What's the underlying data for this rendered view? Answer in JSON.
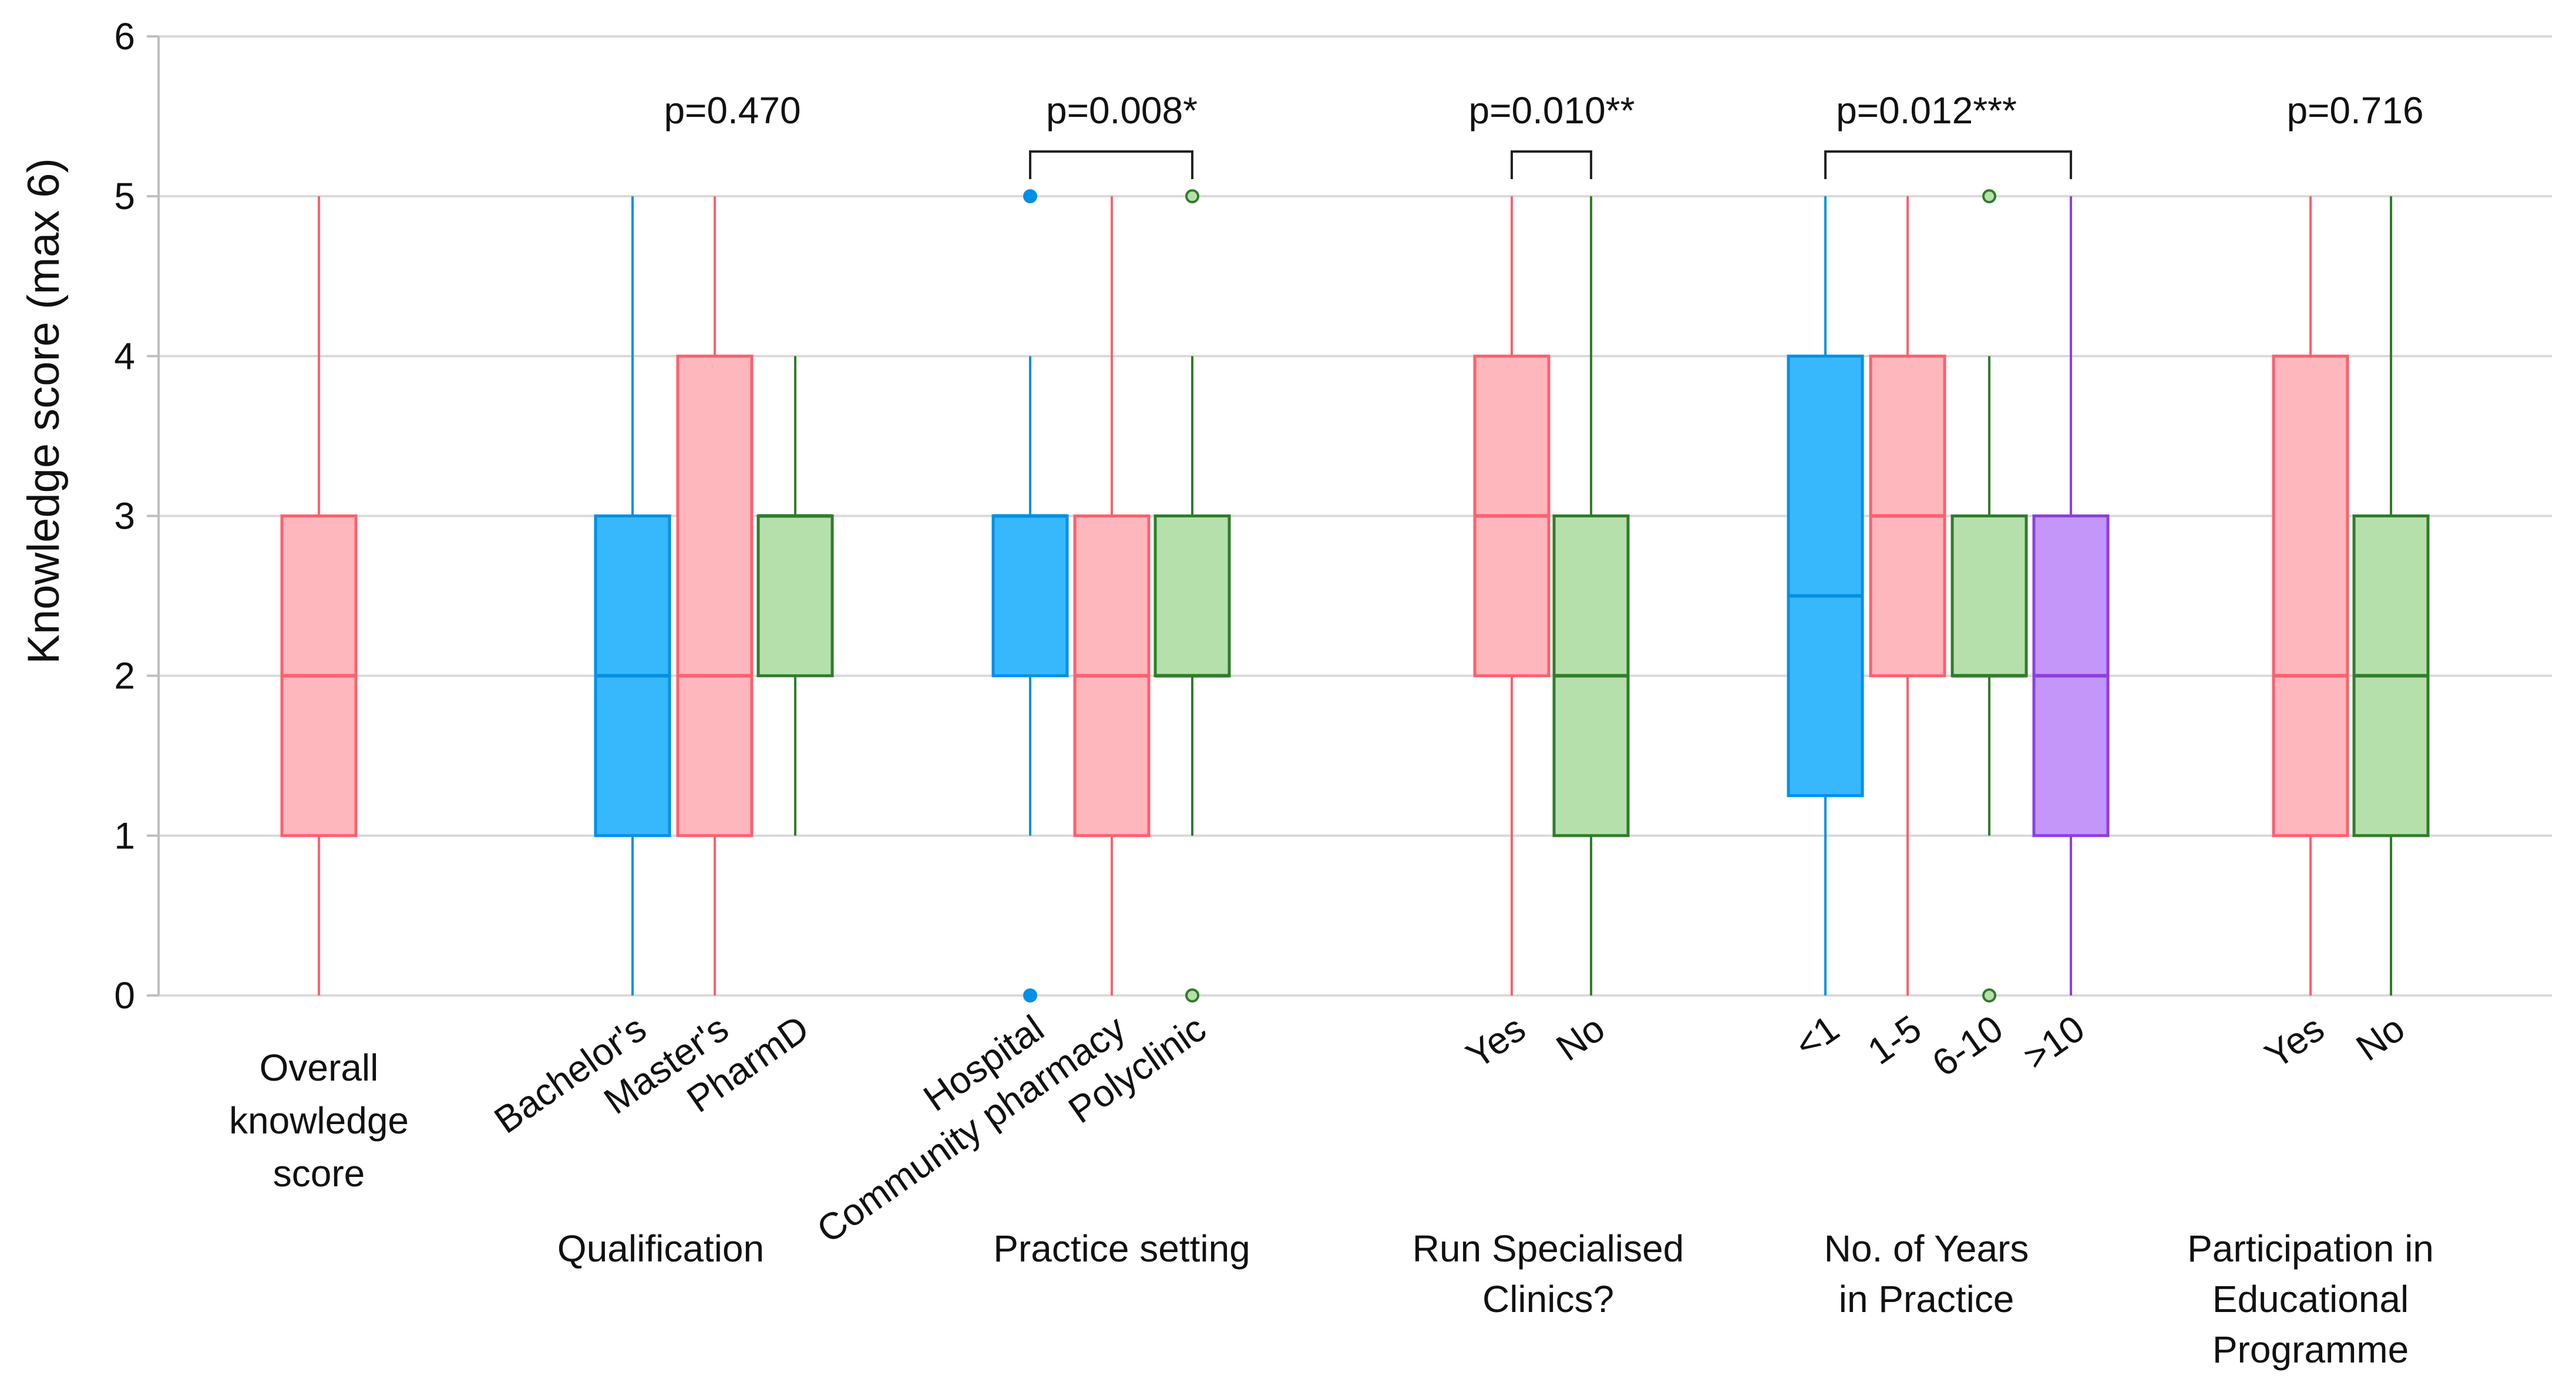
{
  "chart_data": {
    "type": "boxplot",
    "ylabel": "Knowledge score (max 6)",
    "ylim": [
      0,
      6
    ],
    "yticks": [
      0,
      1,
      2,
      3,
      4,
      5,
      6
    ],
    "grid": true,
    "colors": {
      "pink": "#FF5F6D",
      "pink_fill": "#FFB7BE",
      "blue": "#0090E6",
      "blue_fill": "#38B8FC",
      "green": "#2F7D2A",
      "green_fill": "#B6E0AB",
      "purple": "#8B3FE0",
      "purple_fill": "#C596F9"
    },
    "groups": [
      {
        "label": "",
        "title_lines": [],
        "p_value": "",
        "bracket": false,
        "boxes": [
          {
            "name": "overall",
            "label_lines": [
              "Overall",
              "knowledge",
              "score"
            ],
            "rotated": false,
            "color": "pink",
            "min": 0,
            "q1": 1,
            "median": 2,
            "q3": 3,
            "max": 5,
            "outliers": []
          }
        ]
      },
      {
        "label": "Qualification",
        "title_lines": [
          "Qualification"
        ],
        "p_value": "p=0.470",
        "bracket": false,
        "boxes": [
          {
            "name": "bachelors",
            "label": "Bachelor's",
            "color": "blue",
            "min": 0,
            "q1": 1,
            "median": 2,
            "q3": 3,
            "max": 5,
            "outliers": []
          },
          {
            "name": "masters",
            "label": "Master's",
            "color": "pink",
            "min": 0,
            "q1": 1,
            "median": 2,
            "q3": 4,
            "max": 5,
            "outliers": []
          },
          {
            "name": "pharmd",
            "label": "PharmD",
            "color": "green",
            "min": 1,
            "q1": 2,
            "median": 3,
            "q3": 3,
            "max": 4,
            "outliers": []
          }
        ]
      },
      {
        "label": "Practice setting",
        "title_lines": [
          "Practice setting"
        ],
        "p_value": "p=0.008*",
        "bracket": true,
        "bracket_from": 0,
        "bracket_to": 2,
        "boxes": [
          {
            "name": "hospital",
            "label": "Hospital",
            "color": "blue",
            "min": 1,
            "q1": 2,
            "median": 3,
            "q3": 3,
            "max": 4,
            "outliers": [
              0,
              5
            ]
          },
          {
            "name": "community-pharmacy",
            "label": "Community pharmacy",
            "color": "pink",
            "min": 0,
            "q1": 1,
            "median": 2,
            "q3": 3,
            "max": 5,
            "outliers": []
          },
          {
            "name": "polyclinic",
            "label": "Polyclinic",
            "color": "green",
            "min": 1,
            "q1": 2,
            "median": 2,
            "q3": 3,
            "max": 4,
            "outliers": [
              0,
              5
            ]
          }
        ]
      },
      {
        "label": "Run Specialised Clinics?",
        "title_lines": [
          "Run Specialised",
          "Clinics?"
        ],
        "p_value": "p=0.010**",
        "bracket": true,
        "bracket_from": 0,
        "bracket_to": 1,
        "boxes": [
          {
            "name": "clinics-yes",
            "label": "Yes",
            "color": "pink",
            "min": 0,
            "q1": 2,
            "median": 3,
            "q3": 4,
            "max": 5,
            "outliers": []
          },
          {
            "name": "clinics-no",
            "label": "No",
            "color": "green",
            "min": 0,
            "q1": 1,
            "median": 2,
            "q3": 3,
            "max": 5,
            "outliers": []
          }
        ]
      },
      {
        "label": "No. of Years in Practice",
        "title_lines": [
          "No. of Years",
          "in Practice"
        ],
        "p_value": "p=0.012***",
        "bracket": true,
        "bracket_from": 0,
        "bracket_to": 3,
        "boxes": [
          {
            "name": "years-lt1",
            "label": "<1",
            "color": "blue",
            "min": 0,
            "q1": 1.25,
            "median": 2.5,
            "q3": 4,
            "max": 5,
            "outliers": []
          },
          {
            "name": "years-1-5",
            "label": "1-5",
            "color": "pink",
            "min": 0,
            "q1": 2,
            "median": 3,
            "q3": 4,
            "max": 5,
            "outliers": []
          },
          {
            "name": "years-6-10",
            "label": "6-10",
            "color": "green",
            "min": 1,
            "q1": 2,
            "median": 2,
            "q3": 3,
            "max": 4,
            "outliers": [
              0,
              5
            ]
          },
          {
            "name": "years-gt10",
            "label": ">10",
            "color": "purple",
            "min": 0,
            "q1": 1,
            "median": 2,
            "q3": 3,
            "max": 5,
            "outliers": []
          }
        ]
      },
      {
        "label": "Participation in Educational Programme",
        "title_lines": [
          "Participation in",
          "Educational",
          "Programme"
        ],
        "p_value": "p=0.716",
        "bracket": false,
        "boxes": [
          {
            "name": "edu-yes",
            "label": "Yes",
            "color": "pink",
            "min": 0,
            "q1": 1,
            "median": 2,
            "q3": 4,
            "max": 5,
            "outliers": []
          },
          {
            "name": "edu-no",
            "label": "No",
            "color": "green",
            "min": 0,
            "q1": 1,
            "median": 2,
            "q3": 3,
            "max": 5,
            "outliers": []
          }
        ]
      }
    ]
  }
}
